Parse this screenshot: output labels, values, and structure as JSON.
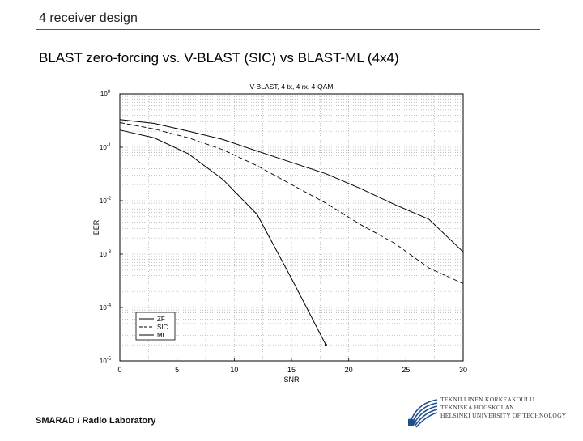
{
  "header": {
    "title": "4 receiver design"
  },
  "slide": {
    "title": "BLAST zero-forcing vs. V-BLAST (SIC) vs BLAST-ML (4x4)"
  },
  "footer": {
    "lab": "SMARAD / Radio Laboratory",
    "university_lines": [
      "TEKNILLINEN KORKEAKOULU",
      "TEKNISKA HÖGSKOLAN",
      "HELSINKI UNIVERSITY OF TECHNOLOGY"
    ]
  },
  "chart_data": {
    "type": "line",
    "title": "V-BLAST, 4 tx, 4 rx, 4-QAM",
    "xlabel": "SNR",
    "ylabel": "BER",
    "xlim": [
      0,
      30
    ],
    "ylim": [
      1e-05,
      1
    ],
    "yscale": "log",
    "xticks": [
      "0",
      "5",
      "10",
      "15",
      "20",
      "25",
      "30"
    ],
    "yticks": [
      "10^0",
      "10^-1",
      "10^-2",
      "10^-3",
      "10^-4",
      "10^-5"
    ],
    "grid": true,
    "legend": "bottom-left",
    "colors": {
      "line": "#000000",
      "grid": "#999999"
    },
    "series": [
      {
        "name": "ZF",
        "style": "solid",
        "x": [
          0,
          3,
          6,
          9,
          12,
          15,
          18,
          21,
          24,
          27,
          30
        ],
        "y": [
          0.33,
          0.28,
          0.2,
          0.14,
          0.085,
          0.052,
          0.032,
          0.017,
          0.0085,
          0.0045,
          0.0011
        ]
      },
      {
        "name": "SIC",
        "style": "dashed",
        "x": [
          0,
          3,
          6,
          9,
          12,
          15,
          18,
          21,
          24,
          27,
          30
        ],
        "y": [
          0.29,
          0.22,
          0.15,
          0.09,
          0.045,
          0.02,
          0.009,
          0.0036,
          0.0016,
          0.00055,
          0.00028
        ]
      },
      {
        "name": "ML",
        "style": "solid",
        "x": [
          0,
          3,
          6,
          9,
          12,
          15,
          18
        ],
        "y": [
          0.21,
          0.15,
          0.075,
          0.025,
          0.0055,
          0.00035,
          2e-05
        ]
      }
    ]
  }
}
